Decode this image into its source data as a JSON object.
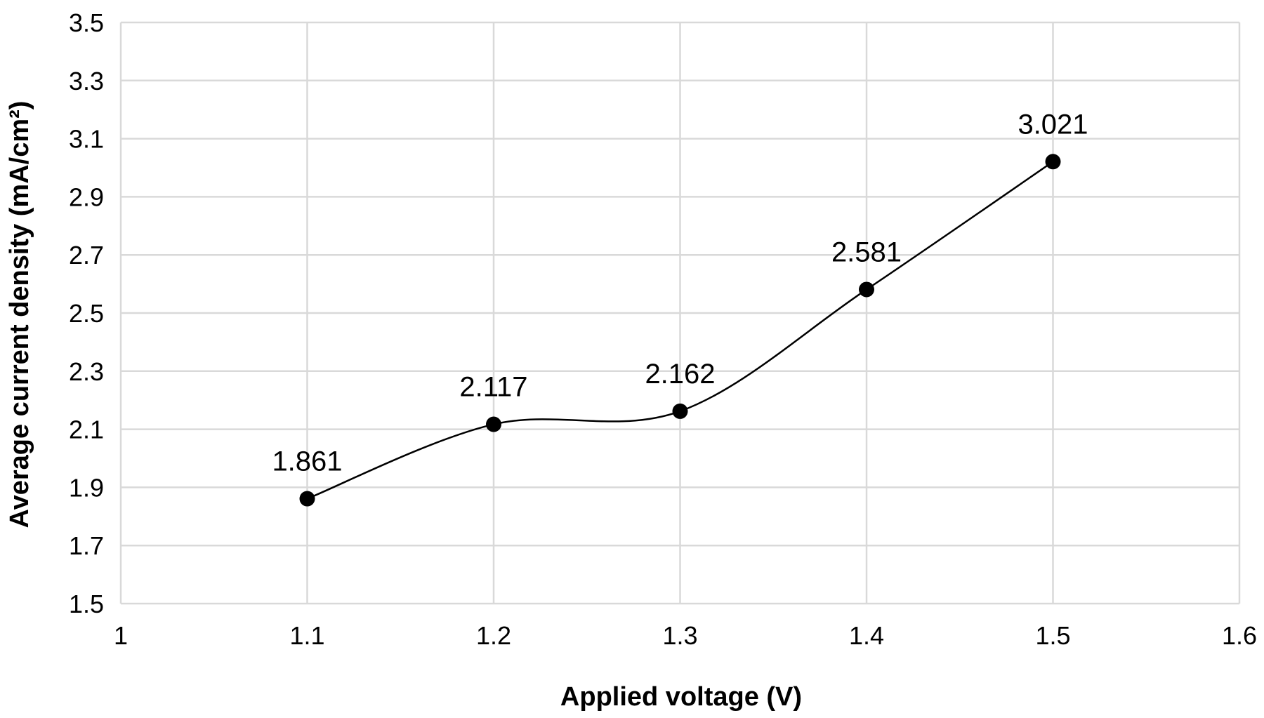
{
  "chart_data": {
    "type": "scatter",
    "x": [
      1.1,
      1.2,
      1.3,
      1.4,
      1.5
    ],
    "series": [
      {
        "values": [
          1.861,
          2.117,
          2.162,
          2.581,
          3.021
        ],
        "data_labels": [
          "1.861",
          "2.117",
          "2.162",
          "2.581",
          "3.021"
        ]
      }
    ],
    "smooth_line": true,
    "xlabel": "Applied voltage (V)",
    "ylabel": "Average current density (mA/cm²)",
    "xlim": [
      1,
      1.6
    ],
    "ylim": [
      1.5,
      3.5
    ],
    "x_ticks": [
      "1",
      "1.1",
      "1.2",
      "1.3",
      "1.4",
      "1.5",
      "1.6"
    ],
    "y_ticks": [
      "1.5",
      "1.7",
      "1.9",
      "2.1",
      "2.3",
      "2.5",
      "2.7",
      "2.9",
      "3.1",
      "3.3",
      "3.5"
    ],
    "grid": true,
    "legend": false,
    "colors": {
      "series": "#000000",
      "grid": "#d9d9d9"
    }
  }
}
